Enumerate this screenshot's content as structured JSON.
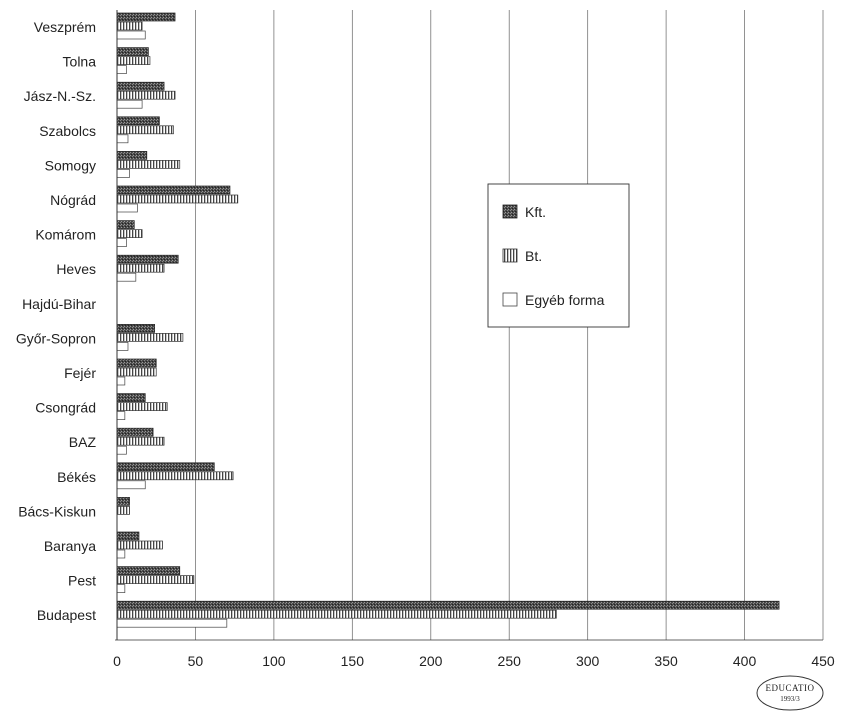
{
  "chart_data": {
    "type": "bar",
    "orientation": "horizontal",
    "categories": [
      "Veszprém",
      "Tolna",
      "Jász-N.-Sz.",
      "Szabolcs",
      "Somogy",
      "Nógrád",
      "Komárom",
      "Heves",
      "Hajdú-Bihar",
      "Győr-Sopron",
      "Fejér",
      "Csongrád",
      "BAZ",
      "Békés",
      "Bács-Kiskun",
      "Baranya",
      "Pest",
      "Budapest"
    ],
    "series": [
      {
        "name": "Kft.",
        "pattern": "dark",
        "values": [
          37,
          20,
          30,
          27,
          19,
          72,
          11,
          39,
          0,
          24,
          25,
          18,
          23,
          62,
          8,
          14,
          40,
          422
        ]
      },
      {
        "name": "Bt.",
        "pattern": "vertical-stripes",
        "values": [
          16,
          21,
          37,
          36,
          40,
          77,
          16,
          30,
          0,
          42,
          25,
          32,
          30,
          74,
          8,
          29,
          49,
          280
        ]
      },
      {
        "name": "Egyéb forma",
        "pattern": "hollow",
        "values": [
          18,
          6,
          16,
          7,
          8,
          13,
          6,
          12,
          0,
          7,
          5,
          5,
          6,
          18,
          0,
          5,
          5,
          70
        ]
      }
    ],
    "xticks": [
      0,
      50,
      100,
      150,
      200,
      250,
      300,
      350,
      400,
      450
    ],
    "xlim": [
      0,
      450
    ],
    "grid": "vertical",
    "legend_position": "center-right",
    "title": "",
    "xlabel": "",
    "ylabel": ""
  },
  "badge": {
    "line1": "EDUCATIO",
    "line2": "1993/3"
  },
  "colors": {
    "kft": "#3a3a3a",
    "bt_stripe": "#444444",
    "grid": "#777777",
    "axis": "#333333"
  }
}
